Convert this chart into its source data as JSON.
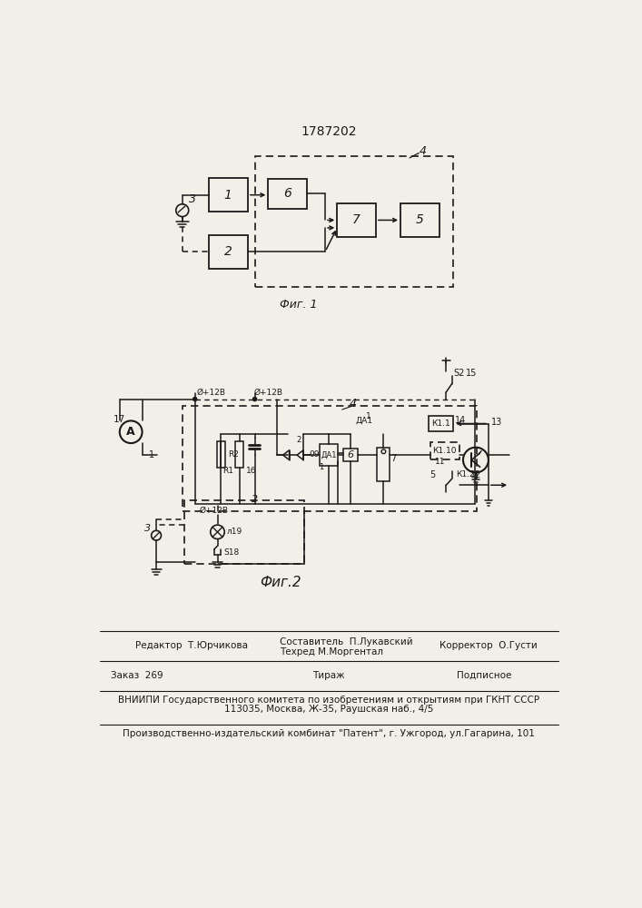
{
  "title": "1787202",
  "fig1_label": "Фиг. 1",
  "fig2_label": "Фиг.2",
  "bg_color": "#f2efe9",
  "lc": "#1a1a1a",
  "editor": "Редактор  Т.Юрчикова",
  "composer": "Составитель  П.Лукавский",
  "techred": "Техред М.Моргентал",
  "corrector": "Корректор  О.Густи",
  "order": "Заказ  269",
  "tirage": "Тираж",
  "subscr": "Подписное",
  "vniipи": "ВНИИПИ Государственного комитета по изобретениям и открытиям при ГКНТ СССР",
  "addr": "113035, Москва, Ж-35, Раушская наб., 4/5",
  "plant": "Производственно-издательский комбинат \"Патент\", г. Ужгород, ул.Гагарина, 101"
}
